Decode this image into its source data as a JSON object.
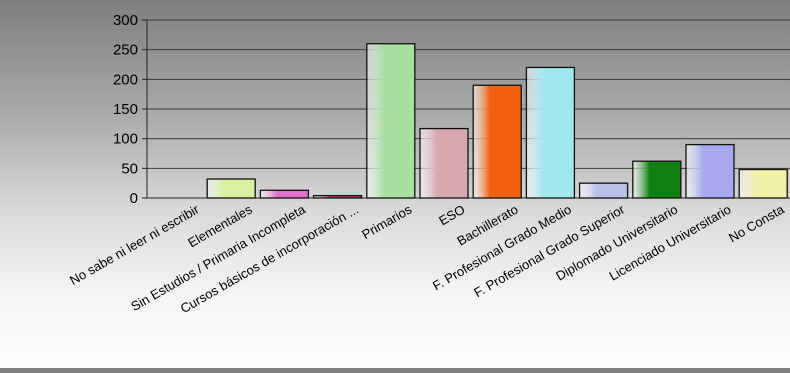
{
  "chart_data": {
    "type": "bar",
    "title": "",
    "xlabel": "",
    "ylabel": "",
    "ylim": [
      0,
      300
    ],
    "yticks": [
      0,
      50,
      100,
      150,
      200,
      250,
      300
    ],
    "grid": true,
    "legend": "none",
    "categories": [
      "No sabe ni leer ni escribir",
      "Elementales",
      "Sin Estudios / Primaria Incompleta",
      "Cursos básicos de incorporación ...",
      "Primarios",
      "ESO",
      "Bachillerato",
      "F. Profesional Grado Medio",
      "F. Profesional Grado Superior",
      "Diplomado Universitario",
      "Licenciado Universitario",
      "No Consta"
    ],
    "values": [
      0,
      32,
      13,
      4,
      260,
      117,
      190,
      220,
      25,
      62,
      90,
      48
    ],
    "colors": [
      "#9aa0c8",
      "#d8f0a0",
      "#e070c8",
      "#d04060",
      "#a8e0a0",
      "#d8a8b0",
      "#f06010",
      "#a0e8f0",
      "#b8c0e8",
      "#108010",
      "#a8a8f0",
      "#f0f0a8"
    ]
  }
}
